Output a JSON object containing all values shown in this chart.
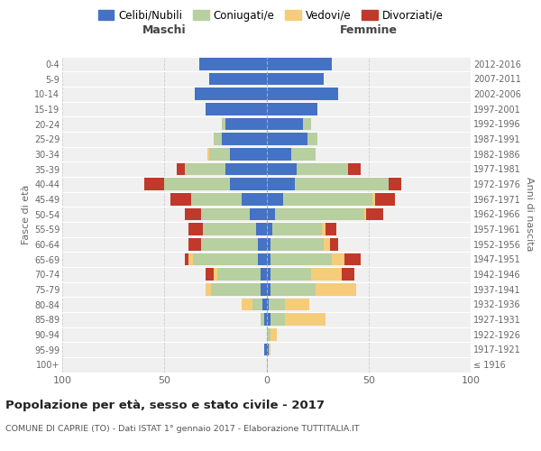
{
  "age_groups": [
    "100+",
    "95-99",
    "90-94",
    "85-89",
    "80-84",
    "75-79",
    "70-74",
    "65-69",
    "60-64",
    "55-59",
    "50-54",
    "45-49",
    "40-44",
    "35-39",
    "30-34",
    "25-29",
    "20-24",
    "15-19",
    "10-14",
    "5-9",
    "0-4"
  ],
  "birth_years": [
    "≤ 1916",
    "1917-1921",
    "1922-1926",
    "1927-1931",
    "1932-1936",
    "1937-1941",
    "1942-1946",
    "1947-1951",
    "1952-1956",
    "1957-1961",
    "1962-1966",
    "1967-1971",
    "1972-1976",
    "1977-1981",
    "1982-1986",
    "1987-1991",
    "1992-1996",
    "1997-2001",
    "2002-2006",
    "2007-2011",
    "2012-2016"
  ],
  "maschi_celibi": [
    0,
    1,
    0,
    1,
    2,
    3,
    3,
    4,
    4,
    5,
    8,
    12,
    18,
    20,
    18,
    22,
    20,
    30,
    35,
    28,
    33
  ],
  "maschi_coniugati": [
    0,
    0,
    0,
    2,
    5,
    24,
    21,
    32,
    28,
    26,
    24,
    25,
    32,
    20,
    10,
    4,
    2,
    0,
    0,
    0,
    0
  ],
  "maschi_vedovi": [
    0,
    0,
    0,
    0,
    5,
    3,
    2,
    2,
    0,
    0,
    0,
    0,
    0,
    0,
    1,
    0,
    0,
    0,
    0,
    0,
    0
  ],
  "maschi_divorziati": [
    0,
    0,
    0,
    0,
    0,
    0,
    4,
    2,
    6,
    7,
    8,
    10,
    10,
    4,
    0,
    0,
    0,
    0,
    0,
    0,
    0
  ],
  "femmine_nubili": [
    0,
    1,
    0,
    2,
    1,
    2,
    2,
    2,
    2,
    3,
    4,
    8,
    14,
    15,
    12,
    20,
    18,
    25,
    35,
    28,
    32
  ],
  "femmine_coniugate": [
    0,
    0,
    2,
    7,
    8,
    22,
    20,
    30,
    26,
    24,
    44,
    44,
    46,
    25,
    12,
    5,
    4,
    0,
    0,
    0,
    0
  ],
  "femmine_vedove": [
    0,
    1,
    3,
    20,
    12,
    20,
    15,
    6,
    3,
    2,
    1,
    1,
    0,
    0,
    0,
    0,
    0,
    0,
    0,
    0,
    0
  ],
  "femmine_divorziate": [
    0,
    0,
    0,
    0,
    0,
    0,
    6,
    8,
    4,
    5,
    8,
    10,
    6,
    6,
    0,
    0,
    0,
    0,
    0,
    0,
    0
  ],
  "color_celibi": "#4472c4",
  "color_coniugati": "#b8cfa0",
  "color_vedovi": "#f5cc7a",
  "color_divorziati": "#c0392b",
  "title": "Popolazione per età, sesso e stato civile - 2017",
  "subtitle": "COMUNE DI CAPRIE (TO) - Dati ISTAT 1° gennaio 2017 - Elaborazione TUTTITALIA.IT",
  "xlim": 100,
  "ylabel_left": "Fasce di età",
  "ylabel_right": "Anni di nascita",
  "label_maschi": "Maschi",
  "label_femmine": "Femmine",
  "legend_labels": [
    "Celibi/Nubili",
    "Coniugati/e",
    "Vedovi/e",
    "Divorziati/e"
  ],
  "bg_color": "#f0f0f0"
}
